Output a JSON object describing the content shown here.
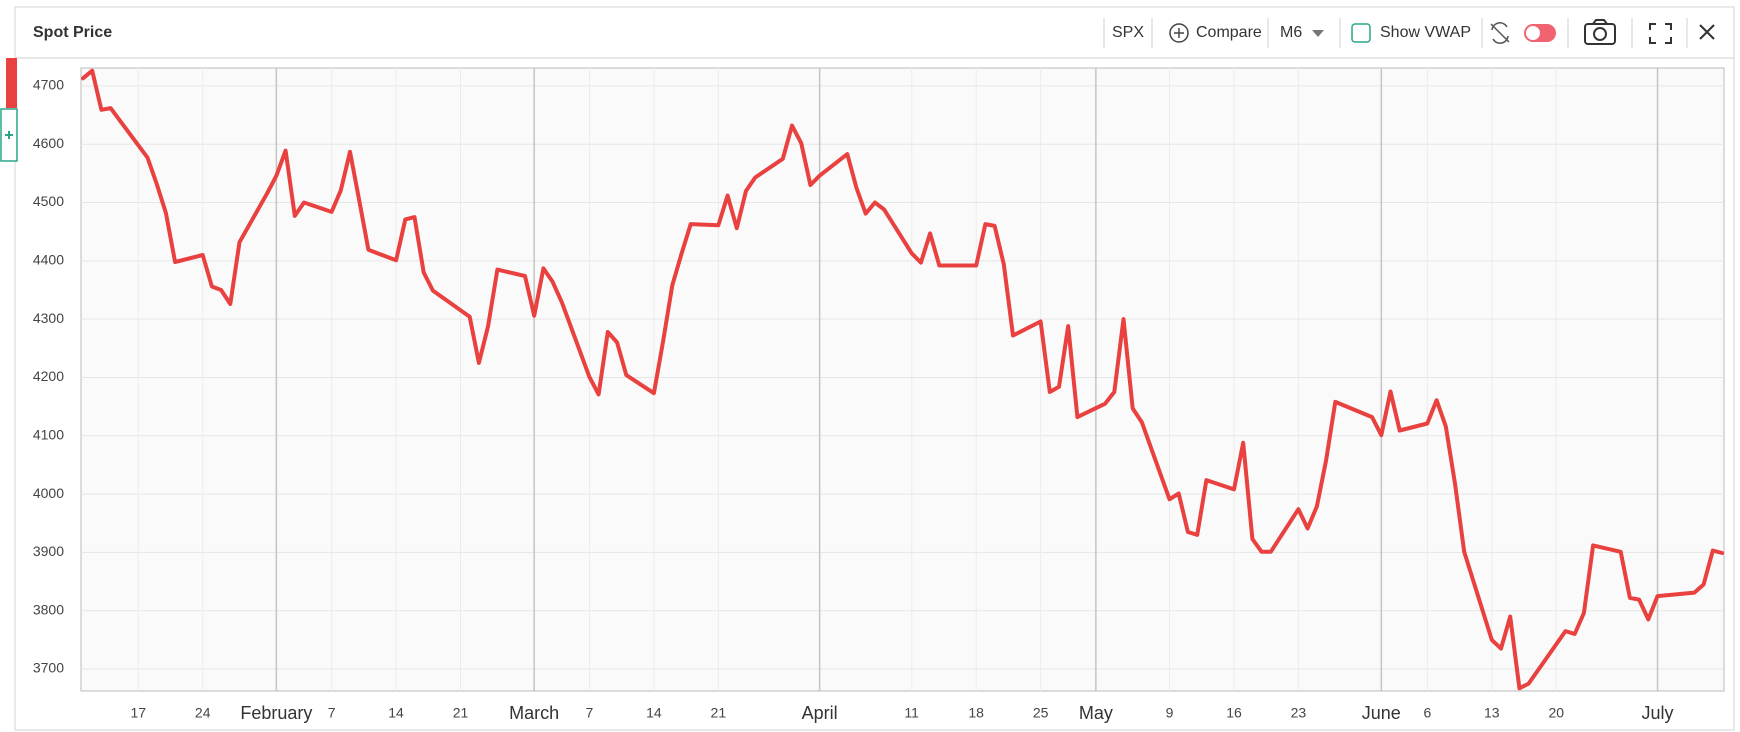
{
  "toolbar": {
    "title": "Spot Price",
    "symbol": "SPX",
    "compare": "Compare",
    "period": "M6",
    "vwap": "Show VWAP"
  },
  "chart_data": {
    "type": "line",
    "color": "#e8413f",
    "grid": true,
    "x": [
      "01-11",
      "01-12",
      "01-13",
      "01-14",
      "01-18",
      "01-19",
      "01-20",
      "01-21",
      "01-24",
      "01-25",
      "01-26",
      "01-27",
      "01-28",
      "01-31",
      "02-01",
      "02-02",
      "02-03",
      "02-04",
      "02-07",
      "02-08",
      "02-09",
      "02-10",
      "02-11",
      "02-14",
      "02-15",
      "02-16",
      "02-17",
      "02-18",
      "02-22",
      "02-23",
      "02-24",
      "02-25",
      "02-28",
      "03-01",
      "03-02",
      "03-03",
      "03-04",
      "03-07",
      "03-08",
      "03-09",
      "03-10",
      "03-11",
      "03-14",
      "03-15",
      "03-16",
      "03-17",
      "03-18",
      "03-21",
      "03-22",
      "03-23",
      "03-24",
      "03-25",
      "03-28",
      "03-29",
      "03-30",
      "03-31",
      "04-01",
      "04-04",
      "04-05",
      "04-06",
      "04-07",
      "04-08",
      "04-11",
      "04-12",
      "04-13",
      "04-14",
      "04-18",
      "04-19",
      "04-20",
      "04-21",
      "04-22",
      "04-25",
      "04-26",
      "04-27",
      "04-28",
      "04-29",
      "05-02",
      "05-03",
      "05-04",
      "05-05",
      "05-06",
      "05-09",
      "05-10",
      "05-11",
      "05-12",
      "05-13",
      "05-16",
      "05-17",
      "05-18",
      "05-19",
      "05-20",
      "05-23",
      "05-24",
      "05-25",
      "05-26",
      "05-27",
      "05-31",
      "06-01",
      "06-02",
      "06-03",
      "06-06",
      "06-07",
      "06-08",
      "06-09",
      "06-10",
      "06-13",
      "06-14",
      "06-15",
      "06-16",
      "06-17",
      "06-21",
      "06-22",
      "06-23",
      "06-24",
      "06-27",
      "06-28",
      "06-29",
      "06-30",
      "07-01",
      "07-05",
      "07-06",
      "07-07",
      "07-08"
    ],
    "values": [
      4713,
      4726,
      4659,
      4662,
      4577,
      4532,
      4482,
      4398,
      4410,
      4356,
      4350,
      4326,
      4432,
      4516,
      4546,
      4589,
      4477,
      4500,
      4484,
      4521,
      4587,
      4504,
      4419,
      4401,
      4471,
      4475,
      4380,
      4349,
      4304,
      4225,
      4288,
      4385,
      4374,
      4306,
      4387,
      4364,
      4329,
      4201,
      4171,
      4278,
      4260,
      4204,
      4173,
      4262,
      4358,
      4412,
      4463,
      4461,
      4512,
      4456,
      4520,
      4543,
      4575,
      4632,
      4602,
      4530,
      4546,
      4583,
      4525,
      4481,
      4500,
      4488,
      4413,
      4397,
      4447,
      4392,
      4392,
      4463,
      4460,
      4394,
      4272,
      4296,
      4175,
      4184,
      4288,
      4132,
      4155,
      4175,
      4300,
      4147,
      4123,
      3991,
      4001,
      3935,
      3930,
      4024,
      4008,
      4088,
      3923,
      3901,
      3901,
      3974,
      3941,
      3979,
      4058,
      4158,
      4132,
      4101,
      4176,
      4109,
      4121,
      4161,
      4116,
      4018,
      3901,
      3750,
      3735,
      3790,
      3667,
      3675,
      3765,
      3760,
      3796,
      3912,
      3901,
      3822,
      3819,
      3785,
      3825,
      3831,
      3845,
      3903,
      3899
    ],
    "xlim": [
      "01-11",
      "07-08"
    ],
    "xticks": [
      {
        "value": "01-17",
        "label": "17"
      },
      {
        "value": "01-24",
        "label": "24"
      },
      {
        "value": "02-01",
        "label": "February"
      },
      {
        "value": "02-07",
        "label": "7"
      },
      {
        "value": "02-14",
        "label": "14"
      },
      {
        "value": "02-21",
        "label": "21"
      },
      {
        "value": "03-01",
        "label": "March"
      },
      {
        "value": "03-07",
        "label": "7"
      },
      {
        "value": "03-14",
        "label": "14"
      },
      {
        "value": "03-21",
        "label": "21"
      },
      {
        "value": "04-01",
        "label": "April"
      },
      {
        "value": "04-11",
        "label": "11"
      },
      {
        "value": "04-18",
        "label": "18"
      },
      {
        "value": "04-25",
        "label": "25"
      },
      {
        "value": "05-01",
        "label": "May"
      },
      {
        "value": "05-09",
        "label": "9"
      },
      {
        "value": "05-16",
        "label": "16"
      },
      {
        "value": "05-23",
        "label": "23"
      },
      {
        "value": "06-01",
        "label": "June"
      },
      {
        "value": "06-06",
        "label": "6"
      },
      {
        "value": "06-13",
        "label": "13"
      },
      {
        "value": "06-20",
        "label": "20"
      },
      {
        "value": "07-01",
        "label": "July"
      }
    ],
    "ylim": [
      3664,
      4729
    ],
    "yticks": [
      3700,
      3800,
      3900,
      4000,
      4100,
      4200,
      4300,
      4400,
      4500,
      4600,
      4700
    ]
  }
}
